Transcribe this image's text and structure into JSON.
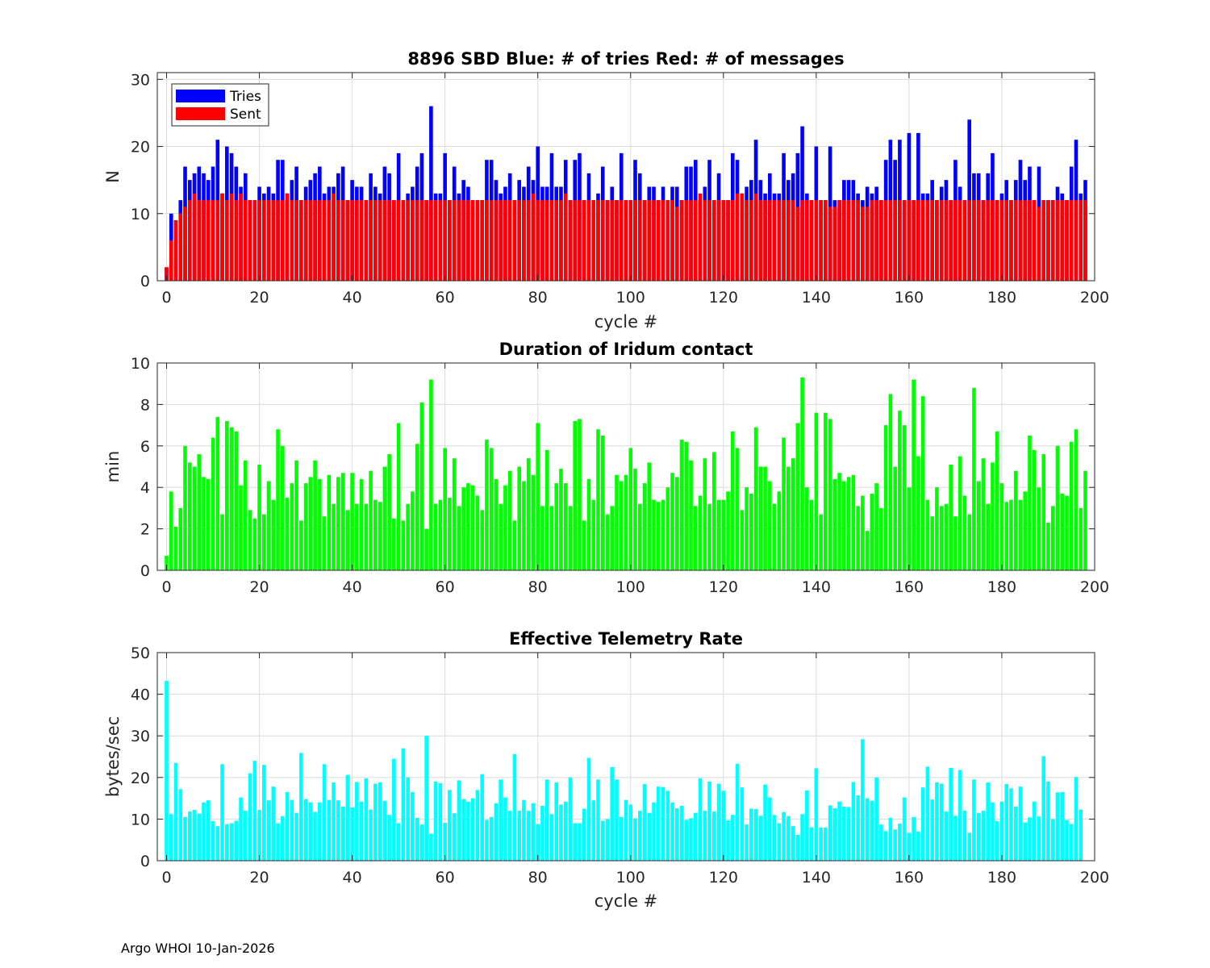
{
  "footer": "Argo WHOI 10-Jan-2026",
  "chart_data": [
    {
      "type": "bar",
      "id": "tries-sent",
      "title": "8896 SBD  Blue: # of tries   Red: # of messages",
      "xlabel": "cycle #",
      "ylabel": "N",
      "xlim": [
        -2,
        200
      ],
      "ylim": [
        0,
        31
      ],
      "xticks": [
        0,
        20,
        40,
        60,
        80,
        100,
        120,
        140,
        160,
        180,
        200
      ],
      "yticks": [
        0,
        10,
        20,
        30
      ],
      "grid": true,
      "legend_position": "top-left",
      "colors": {
        "Tries": "#0000ff",
        "Sent": "#ff0000"
      },
      "series": [
        {
          "name": "Tries",
          "values": [
            2,
            10,
            9,
            12,
            17,
            15,
            16,
            17,
            16,
            15,
            17,
            21,
            13,
            20,
            19,
            17,
            14,
            16,
            12,
            12,
            14,
            13,
            14,
            13,
            18,
            18,
            13,
            15,
            17,
            12,
            14,
            15,
            16,
            17,
            13,
            14,
            14,
            16,
            17,
            12,
            15,
            14,
            14,
            12,
            16,
            14,
            13,
            17,
            16,
            12,
            19,
            12,
            13,
            14,
            17,
            19,
            12,
            26,
            13,
            13,
            19,
            12,
            17,
            13,
            15,
            14,
            12,
            12,
            12,
            18,
            18,
            15,
            13,
            14,
            16,
            12,
            15,
            14,
            17,
            15,
            20,
            14,
            14,
            19,
            14,
            14,
            18,
            12,
            18,
            19,
            12,
            16,
            12,
            13,
            17,
            12,
            14,
            12,
            19,
            12,
            12,
            18,
            16,
            12,
            14,
            14,
            12,
            14,
            12,
            14,
            14,
            12,
            17,
            17,
            18,
            12,
            14,
            18,
            12,
            16,
            12,
            12,
            19,
            18,
            13,
            14,
            15,
            21,
            15,
            13,
            16,
            13,
            13,
            19,
            15,
            16,
            19,
            23,
            13,
            12,
            20,
            12,
            12,
            20,
            12,
            12,
            15,
            15,
            15,
            13,
            12,
            14,
            13,
            14,
            12,
            18,
            21,
            18,
            21,
            12,
            22,
            12,
            22,
            13,
            13,
            15,
            12,
            14,
            15,
            12,
            18,
            14,
            12,
            24,
            16,
            16,
            12,
            16,
            19,
            12,
            13,
            15,
            12,
            15,
            18,
            15,
            17,
            12,
            17,
            12,
            12,
            12,
            14,
            13,
            12,
            17,
            21,
            13,
            15
          ]
        },
        {
          "name": "Sent",
          "values": [
            2,
            6,
            9,
            10,
            11,
            12,
            13,
            12,
            12,
            12,
            12,
            12,
            13,
            12,
            13,
            12,
            13,
            12,
            12,
            12,
            12,
            12,
            12,
            12,
            12,
            12,
            13,
            12,
            12,
            12,
            12,
            12,
            12,
            12,
            12,
            12,
            13,
            12,
            12,
            12,
            12,
            12,
            12,
            12,
            12,
            12,
            12,
            12,
            12,
            12,
            12,
            12,
            12,
            12,
            12,
            12,
            12,
            12,
            12,
            12,
            12,
            12,
            12,
            12,
            12,
            12,
            12,
            12,
            12,
            12,
            12,
            12,
            12,
            12,
            12,
            12,
            12,
            12,
            12,
            13,
            12,
            12,
            12,
            12,
            12,
            12,
            13,
            12,
            12,
            12,
            12,
            12,
            12,
            12,
            12,
            12,
            12,
            12,
            12,
            12,
            12,
            12,
            12,
            12,
            12,
            12,
            12,
            12,
            12,
            12,
            11,
            12,
            12,
            12,
            12,
            13,
            12,
            12,
            12,
            12,
            12,
            12,
            12,
            13,
            13,
            12,
            12,
            13,
            12,
            12,
            12,
            12,
            12,
            12,
            12,
            12,
            11,
            12,
            12,
            12,
            12,
            12,
            12,
            11,
            11,
            12,
            12,
            12,
            12,
            12,
            11,
            11,
            12,
            12,
            12,
            12,
            12,
            12,
            12,
            12,
            12,
            12,
            12,
            12,
            12,
            12,
            12,
            12,
            12,
            12,
            12,
            12,
            12,
            12,
            12,
            12,
            12,
            12,
            12,
            12,
            12,
            12,
            12,
            12,
            12,
            12,
            12,
            12,
            11,
            12,
            12,
            12,
            12,
            12,
            12,
            12,
            12,
            12,
            12
          ]
        }
      ]
    },
    {
      "type": "bar",
      "id": "duration",
      "title": "Duration of Iridum contact",
      "xlabel": "",
      "ylabel": "min",
      "xlim": [
        -2,
        200
      ],
      "ylim": [
        0,
        10
      ],
      "xticks": [
        0,
        20,
        40,
        60,
        80,
        100,
        120,
        140,
        160,
        180,
        200
      ],
      "yticks": [
        0,
        2,
        4,
        6,
        8,
        10
      ],
      "grid": true,
      "color": "#00ff00",
      "values": [
        0.7,
        3.8,
        2.1,
        3.0,
        6.0,
        5.2,
        5.0,
        5.6,
        4.5,
        4.4,
        6.4,
        7.4,
        2.7,
        7.2,
        6.9,
        6.7,
        4.1,
        5.3,
        2.9,
        2.5,
        5.1,
        2.7,
        4.3,
        3.4,
        6.8,
        6.0,
        3.5,
        4.2,
        5.3,
        2.4,
        4.2,
        4.5,
        5.3,
        4.4,
        2.6,
        4.6,
        3.2,
        4.5,
        4.7,
        2.9,
        4.7,
        3.2,
        4.4,
        3.2,
        4.8,
        3.4,
        3.3,
        5.0,
        5.6,
        2.5,
        7.1,
        2.4,
        3.2,
        3.8,
        6.1,
        8.1,
        2.0,
        9.2,
        3.2,
        3.4,
        5.9,
        3.5,
        5.4,
        3.1,
        4.0,
        4.2,
        4.1,
        3.6,
        2.9,
        6.3,
        5.9,
        4.4,
        3.2,
        4.1,
        4.8,
        2.4,
        5.0,
        4.3,
        5.4,
        4.6,
        7.1,
        3.1,
        5.8,
        3.1,
        4.2,
        4.9,
        4.2,
        3.1,
        7.2,
        7.3,
        2.4,
        4.4,
        3.4,
        6.8,
        6.5,
        2.7,
        3.1,
        4.6,
        4.3,
        4.6,
        5.9,
        4.9,
        3.2,
        4.2,
        5.2,
        3.4,
        3.3,
        3.4,
        4.0,
        4.7,
        4.5,
        6.3,
        6.2,
        5.3,
        3.1,
        3.6,
        5.4,
        3.2,
        5.7,
        3.4,
        3.4,
        3.8,
        6.7,
        5.9,
        2.9,
        4.0,
        3.7,
        6.9,
        5.0,
        5.0,
        4.3,
        3.2,
        3.8,
        6.4,
        5.0,
        5.4,
        7.1,
        9.3,
        4.0,
        3.4,
        7.6,
        2.7,
        7.6,
        7.3,
        4.4,
        4.7,
        4.3,
        4.5,
        4.6,
        3.1,
        3.6,
        1.9,
        3.7,
        4.2,
        3.0,
        7.0,
        8.5,
        5.0,
        7.7,
        7.0,
        4.0,
        9.2,
        5.5,
        8.4,
        3.4,
        2.6,
        4.0,
        3.1,
        3.2,
        5.1,
        2.6,
        5.5,
        3.6,
        2.7,
        8.8,
        4.3,
        5.4,
        3.2,
        5.2,
        6.7,
        4.2,
        3.3,
        3.4,
        4.8,
        3.4,
        3.8,
        6.5,
        5.8,
        4.0,
        5.6,
        2.3,
        3.1,
        6.0,
        3.7,
        3.6,
        6.2,
        6.8,
        3.0,
        4.8
      ]
    },
    {
      "type": "bar",
      "id": "rate",
      "title": "Effective Telemetry Rate",
      "xlabel": "cycle #",
      "ylabel": "bytes/sec",
      "xlim": [
        -2,
        200
      ],
      "ylim": [
        0,
        50
      ],
      "xticks": [
        0,
        20,
        40,
        60,
        80,
        100,
        120,
        140,
        160,
        180,
        200
      ],
      "yticks": [
        0,
        10,
        20,
        30,
        40,
        50
      ],
      "grid": true,
      "color": "#00ffff",
      "values": [
        43.2,
        11.2,
        23.5,
        17.2,
        10.5,
        11.8,
        12.2,
        11.3,
        14.0,
        14.5,
        9.5,
        8.3,
        23.2,
        8.8,
        9.0,
        9.6,
        15.2,
        12.0,
        21.0,
        24.0,
        12.2,
        23.0,
        14.5,
        17.8,
        9.0,
        10.7,
        16.5,
        14.6,
        11.5,
        25.9,
        14.8,
        14.0,
        11.7,
        14.0,
        23.2,
        14.6,
        18.8,
        14.5,
        13.0,
        20.6,
        12.8,
        18.9,
        14.2,
        19.8,
        12.3,
        18.5,
        18.8,
        14.4,
        11.0,
        24.5,
        9.0,
        27.0,
        20.0,
        16.5,
        10.3,
        8.7,
        30.0,
        6.5,
        19.0,
        18.6,
        9.1,
        17.0,
        11.4,
        19.3,
        14.8,
        14.2,
        15.0,
        17.0,
        20.8,
        9.8,
        10.5,
        13.8,
        19.5,
        15.2,
        12.0,
        25.6,
        12.0,
        14.6,
        12.0,
        13.8,
        8.8,
        13.2,
        19.5,
        11.2,
        18.8,
        13.5,
        14.2,
        20.0,
        9.0,
        9.0,
        12.5,
        24.7,
        14.5,
        19.5,
        9.6,
        10.0,
        22.5,
        19.5,
        10.5,
        14.6,
        13.5,
        10.2,
        12.0,
        18.4,
        11.5,
        14.0,
        17.8,
        17.7,
        16.8,
        14.0,
        12.6,
        13.2,
        9.8,
        10.2,
        11.5,
        19.8,
        12.0,
        19.0,
        11.8,
        18.5,
        16.8,
        9.7,
        11.0,
        23.3,
        17.6,
        8.7,
        12.5,
        12.4,
        10.8,
        18.3,
        15.2,
        11.0,
        9.0,
        11.7,
        10.7,
        8.3,
        6.2,
        11.2,
        16.9,
        8.0,
        22.2,
        8.0,
        8.0,
        13.3,
        12.6,
        14.2,
        13.0,
        12.9,
        18.9,
        15.7,
        29.2,
        15.0,
        14.4,
        20.0,
        8.7,
        7.1,
        10.3,
        7.5,
        8.9,
        15.2,
        6.7,
        10.5,
        7.0,
        17.6,
        22.6,
        14.7,
        18.8,
        18.5,
        11.8,
        22.3,
        10.8,
        21.8,
        12.0,
        6.7,
        19.5,
        11.5,
        12.0,
        18.8,
        14.0,
        9.5,
        14.2,
        18.4,
        17.4,
        13.0,
        17.8,
        9.2,
        10.4,
        14.2,
        10.6,
        25.1,
        19.0,
        10.0,
        16.4,
        16.5,
        9.8,
        8.8,
        20.1,
        12.3
      ]
    }
  ]
}
